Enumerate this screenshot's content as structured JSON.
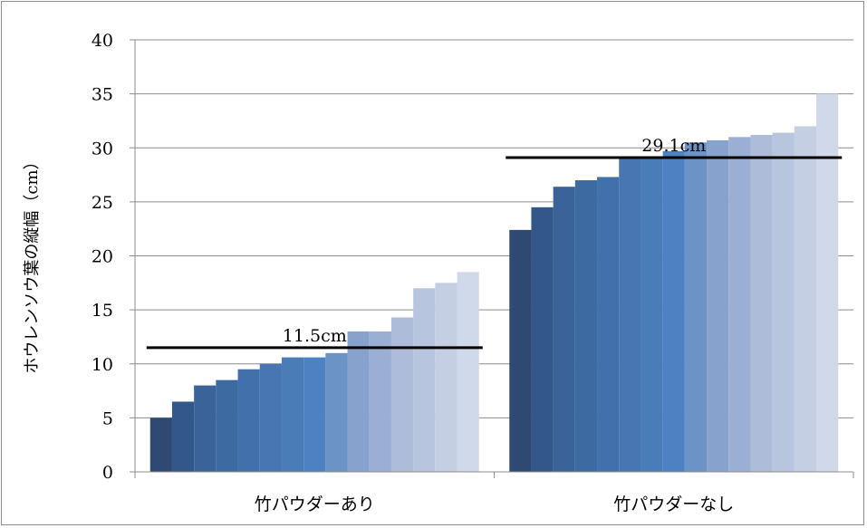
{
  "chart_data": {
    "type": "bar",
    "title": "",
    "xlabel": "",
    "ylabel": "ホウレンソウ葉の縦幅（cm）",
    "ylim": [
      0,
      40
    ],
    "yticks": [
      0,
      5,
      10,
      15,
      20,
      25,
      30,
      35,
      40
    ],
    "ytick_labels": [
      "0",
      "5",
      "10",
      "15",
      "20",
      "25",
      "30",
      "35",
      "40"
    ],
    "grid": "horizontal",
    "legend": "none",
    "categories": [
      "竹パウダーあり",
      "竹パウダーなし"
    ],
    "groups": [
      {
        "category": "竹パウダーあり",
        "values": [
          5,
          6.5,
          8,
          8.5,
          9.5,
          10,
          10.6,
          10.6,
          11,
          13,
          13,
          14.3,
          17,
          17.5,
          18.5
        ],
        "mean": 11.5,
        "mean_label": "11.5cm"
      },
      {
        "category": "竹パウダーなし",
        "values": [
          22.4,
          24.5,
          26.4,
          27,
          27.3,
          29.1,
          29.1,
          29.7,
          30.5,
          30.7,
          31,
          31.2,
          31.4,
          32,
          35
        ],
        "mean": 29.1,
        "mean_label": "29.1cm"
      }
    ],
    "bar_colors": [
      "#2e4a73",
      "#34578a",
      "#3a6499",
      "#3e6aa2",
      "#4270ab",
      "#4776b3",
      "#4a7cb8",
      "#4c82c2",
      "#6c93c6",
      "#87a2cc",
      "#9aafd3",
      "#acbcd9",
      "#b7c5de",
      "#c4cfe4",
      "#d0d9ea"
    ],
    "colors": {
      "mean_line": "#000000",
      "grid": "#8c8c8c",
      "frame": "#8c8c8c"
    }
  }
}
